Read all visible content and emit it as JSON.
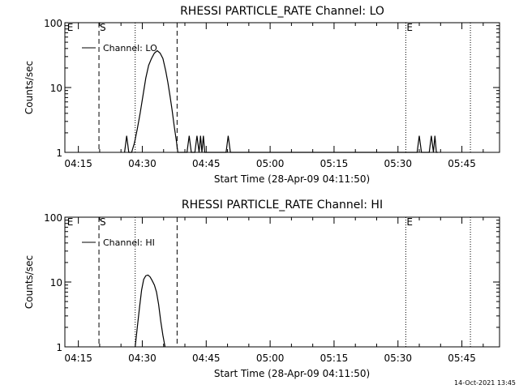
{
  "footer": {
    "timestamp": "14-Oct-2021 13:45"
  },
  "chart_data": [
    {
      "type": "line",
      "title": "RHESSI PARTICLE_RATE Channel: LO",
      "xlabel": "Start Time (28-Apr-09 04:11:50)",
      "ylabel": "Counts/sec",
      "yscale": "log",
      "ylim": [
        1,
        100
      ],
      "xlim": [
        "04:11:50",
        "05:53:50"
      ],
      "x_ticks": [
        "04:15",
        "04:30",
        "04:45",
        "05:00",
        "05:15",
        "05:30",
        "05:45"
      ],
      "y_ticks": [
        "1",
        "10",
        "100"
      ],
      "legend": "top-left",
      "series": [
        {
          "name": "Channel: LO",
          "x": [
            "04:25:50",
            "04:26:20",
            "04:26:50",
            "04:27:30",
            "04:28:10",
            "04:28:50",
            "04:29:30",
            "04:30:10",
            "04:30:50",
            "04:31:30",
            "04:32:10",
            "04:32:50",
            "04:33:30",
            "04:34:10",
            "04:34:50",
            "04:35:30",
            "04:36:00",
            "04:36:30",
            "04:37:00",
            "04:37:30",
            "04:38:00",
            "04:38:20",
            "04:40:30",
            "04:41:00",
            "04:41:30",
            "04:42:20",
            "04:42:50",
            "04:43:20",
            "04:43:40",
            "04:44:00",
            "04:44:20",
            "04:44:40",
            "04:49:40",
            "04:50:10",
            "04:50:40",
            "05:34:30",
            "05:35:00",
            "05:35:30",
            "05:37:20",
            "05:37:50",
            "05:38:20",
            "05:38:40",
            "05:39:00",
            "05:39:20"
          ],
          "values": [
            1,
            1.8,
            1,
            1,
            1.4,
            2.3,
            4,
            7.5,
            14,
            22,
            28,
            34,
            37,
            34,
            28,
            18,
            12,
            7.5,
            4.5,
            2.5,
            1.5,
            1,
            1,
            1.8,
            1,
            1,
            1.8,
            1,
            1.8,
            1,
            1.8,
            1,
            1,
            1.8,
            1,
            1,
            1.8,
            1,
            1,
            1.8,
            1,
            1.8,
            1,
            1
          ]
        }
      ],
      "annotations": [
        {
          "label": "E",
          "x": "04:12:10",
          "style": "marker"
        },
        {
          "label": "S",
          "x": "04:19:50",
          "style": "dashed"
        },
        {
          "label": "",
          "x": "04:28:20",
          "style": "dotted"
        },
        {
          "label": "",
          "x": "04:38:10",
          "style": "dashed"
        },
        {
          "label": "E",
          "x": "05:31:50",
          "style": "dotted"
        },
        {
          "label": "",
          "x": "05:47:00",
          "style": "dotted"
        }
      ]
    },
    {
      "type": "line",
      "title": "RHESSI PARTICLE_RATE Channel: HI",
      "xlabel": "Start Time (28-Apr-09 04:11:50)",
      "ylabel": "Counts/sec",
      "yscale": "log",
      "ylim": [
        1,
        100
      ],
      "xlim": [
        "04:11:50",
        "05:53:50"
      ],
      "x_ticks": [
        "04:15",
        "04:30",
        "04:45",
        "05:00",
        "05:15",
        "05:30",
        "05:45"
      ],
      "y_ticks": [
        "1",
        "10",
        "100"
      ],
      "legend": "top-left",
      "series": [
        {
          "name": "Channel: HI",
          "x": [
            "04:28:20",
            "04:28:50",
            "04:29:20",
            "04:29:50",
            "04:30:20",
            "04:30:50",
            "04:31:20",
            "04:31:50",
            "04:32:20",
            "04:32:50",
            "04:33:20",
            "04:33:50",
            "04:34:20",
            "04:34:50",
            "04:35:20"
          ],
          "values": [
            1,
            2,
            4,
            7.5,
            11,
            12.5,
            12.8,
            12,
            10.5,
            9,
            7,
            4.5,
            2.5,
            1.5,
            1
          ]
        }
      ],
      "annotations": [
        {
          "label": "E",
          "x": "04:12:10",
          "style": "marker"
        },
        {
          "label": "S",
          "x": "04:19:50",
          "style": "dashed"
        },
        {
          "label": "",
          "x": "04:28:20",
          "style": "dotted"
        },
        {
          "label": "",
          "x": "04:38:10",
          "style": "dashed"
        },
        {
          "label": "E",
          "x": "05:31:50",
          "style": "dotted"
        },
        {
          "label": "",
          "x": "05:47:00",
          "style": "dotted"
        }
      ]
    }
  ]
}
